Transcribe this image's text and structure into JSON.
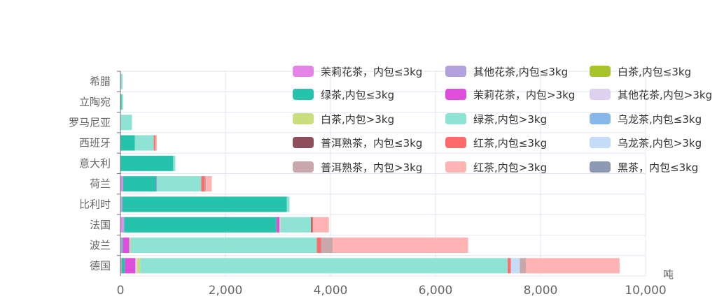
{
  "chart_data": {
    "type": "bar",
    "orientation": "horizontal",
    "stacked": true,
    "title": "",
    "xlabel": "吨",
    "ylabel": "",
    "xlim": [
      0,
      10000
    ],
    "x_ticks": [
      0,
      2000,
      4000,
      6000,
      8000,
      10000
    ],
    "x_tick_labels": [
      "0",
      "2,000",
      "4,000",
      "6,000",
      "8,000",
      "10,000"
    ],
    "grid": true,
    "legend_position": "top-right",
    "categories": [
      "德国",
      "波兰",
      "法国",
      "比利时",
      "荷兰",
      "意大利",
      "西班牙",
      "罗马尼亚",
      "立陶宛",
      "希腊"
    ],
    "series": [
      {
        "name": "茉莉花茶，内包≤3kg",
        "color": "#e683e6",
        "values": [
          15,
          20,
          50,
          10,
          40,
          5,
          5,
          0,
          0,
          0
        ]
      },
      {
        "name": "其他花茶,内包≤3kg",
        "color": "#b3a1dd",
        "values": [
          5,
          10,
          20,
          30,
          10,
          0,
          0,
          0,
          0,
          0
        ]
      },
      {
        "name": "白茶,内包≤3kg",
        "color": "#a8c42d",
        "values": [
          5,
          0,
          0,
          0,
          0,
          0,
          0,
          0,
          0,
          0
        ]
      },
      {
        "name": "绿茶,内包≤3kg",
        "color": "#26c3ac",
        "values": [
          60,
          20,
          2900,
          3130,
          630,
          1000,
          270,
          10,
          20,
          10
        ]
      },
      {
        "name": "茉莉花茶，内包>3kg",
        "color": "#de4ddb",
        "values": [
          200,
          120,
          60,
          0,
          10,
          0,
          0,
          0,
          0,
          0
        ]
      },
      {
        "name": "其他花茶,内包>3kg",
        "color": "#dcd2ef",
        "values": [
          30,
          10,
          10,
          0,
          0,
          0,
          0,
          0,
          0,
          0
        ]
      },
      {
        "name": "白茶,内包>3kg",
        "color": "#c9df7d",
        "values": [
          60,
          20,
          10,
          0,
          0,
          0,
          0,
          0,
          0,
          0
        ]
      },
      {
        "name": "绿茶,内包>3kg",
        "color": "#8fe3d4",
        "values": [
          7000,
          3540,
          580,
          50,
          850,
          40,
          360,
          210,
          30,
          30
        ]
      },
      {
        "name": "乌龙茶,内包≤3kg",
        "color": "#88b7e9",
        "values": [
          0,
          0,
          0,
          0,
          0,
          0,
          0,
          0,
          0,
          0
        ]
      },
      {
        "name": "普洱熟茶，内包≤3kg",
        "color": "#8f4f5a",
        "values": [
          0,
          0,
          20,
          0,
          0,
          0,
          0,
          0,
          0,
          0
        ]
      },
      {
        "name": "红茶,内包≤3kg",
        "color": "#ff6b6b",
        "values": [
          60,
          80,
          20,
          0,
          60,
          0,
          30,
          0,
          0,
          0
        ]
      },
      {
        "name": "乌龙茶,内包>3kg",
        "color": "#c4dcf6",
        "values": [
          170,
          0,
          0,
          0,
          0,
          0,
          0,
          0,
          0,
          0
        ]
      },
      {
        "name": "普洱熟茶，内包>3kg",
        "color": "#c9a8ac",
        "values": [
          120,
          220,
          0,
          0,
          30,
          0,
          0,
          0,
          0,
          0
        ]
      },
      {
        "name": "红茶,内包>3kg",
        "color": "#ffb3b3",
        "values": [
          1780,
          2580,
          300,
          0,
          110,
          0,
          30,
          0,
          0,
          0
        ]
      },
      {
        "name": "黑茶，内包≤3kg",
        "color": "#8e99b5",
        "values": [
          0,
          0,
          0,
          0,
          0,
          0,
          0,
          0,
          0,
          0
        ]
      }
    ]
  }
}
